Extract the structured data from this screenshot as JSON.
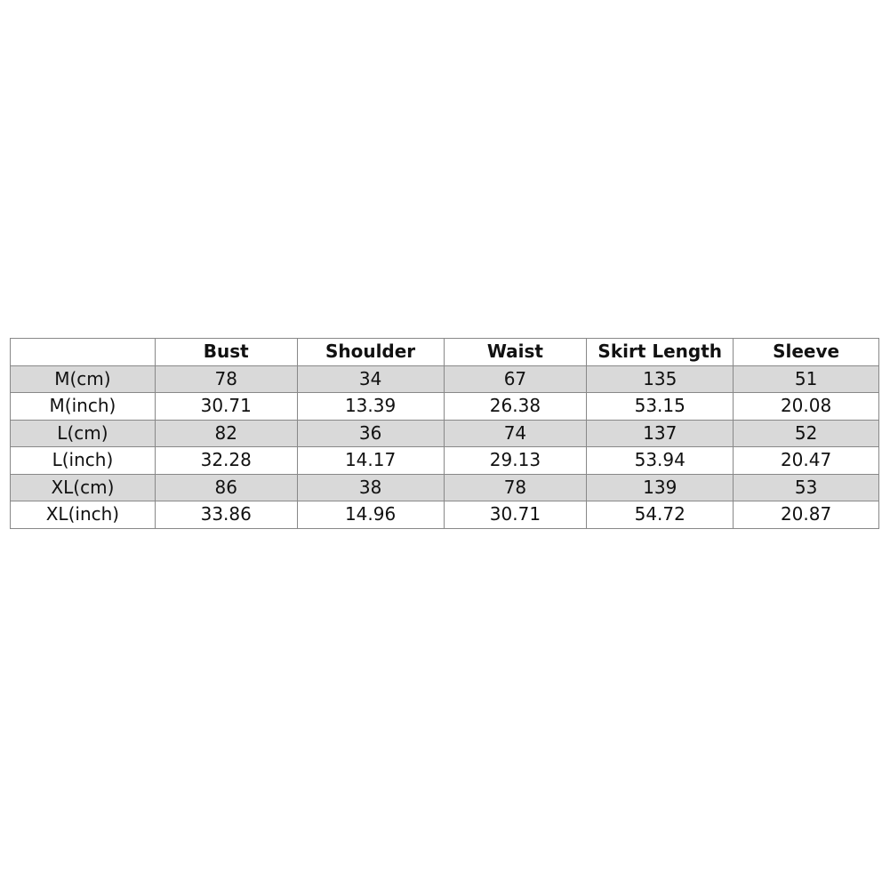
{
  "table": {
    "headers": [
      "",
      "Bust",
      "Shoulder",
      "Waist",
      "Skirt Length",
      "Sleeve"
    ],
    "rows": [
      [
        "M(cm)",
        "78",
        "34",
        "67",
        "135",
        "51"
      ],
      [
        "M(inch)",
        "30.71",
        "13.39",
        "26.38",
        "53.15",
        "20.08"
      ],
      [
        "L(cm)",
        "82",
        "36",
        "74",
        "137",
        "52"
      ],
      [
        "L(inch)",
        "32.28",
        "14.17",
        "29.13",
        "53.94",
        "20.47"
      ],
      [
        "XL(cm)",
        "86",
        "38",
        "78",
        "139",
        "53"
      ],
      [
        "XL(inch)",
        "33.86",
        "14.96",
        "30.71",
        "54.72",
        "20.87"
      ]
    ],
    "shaded_row_color": "#d9d9d9"
  }
}
